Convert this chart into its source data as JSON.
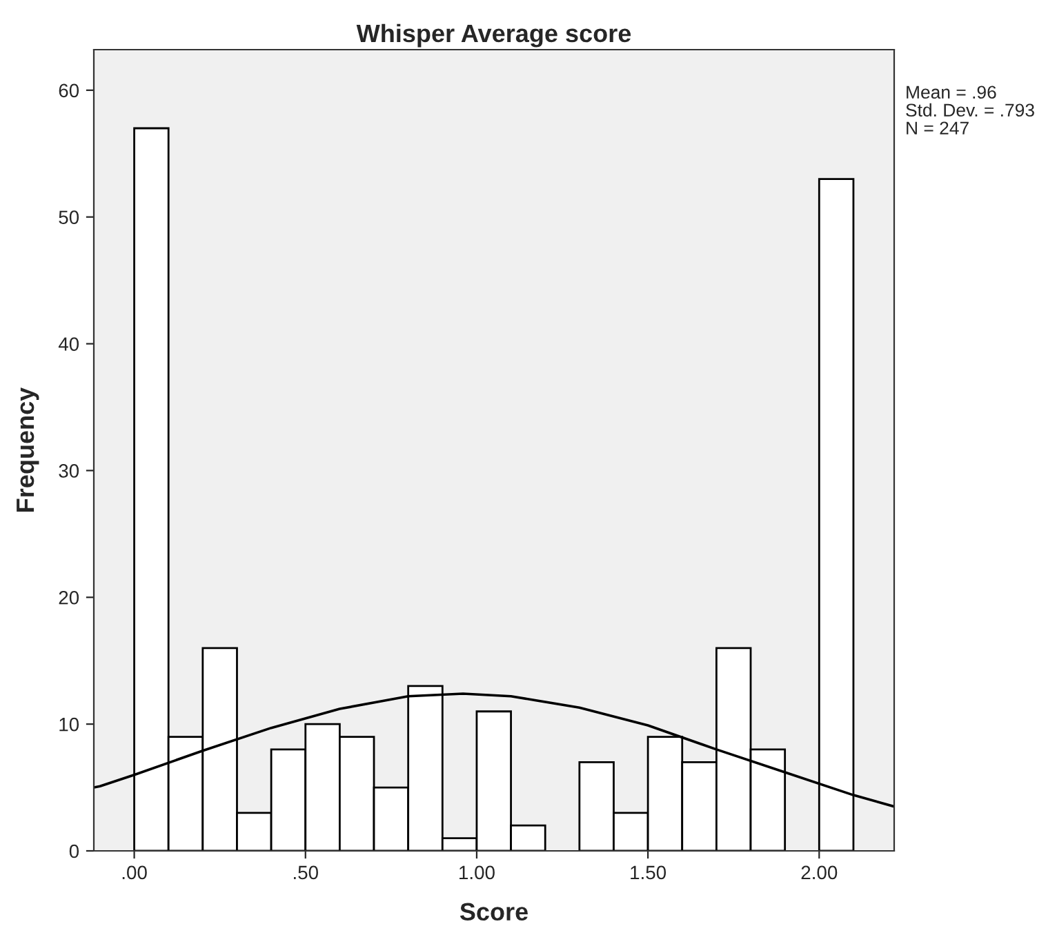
{
  "chart_data": {
    "type": "histogram",
    "title": "Whisper Average score",
    "xlabel": "Score",
    "ylabel": "Frequency",
    "bins": [
      0,
      0.1,
      0.2,
      0.3,
      0.4,
      0.5,
      0.6,
      0.7,
      0.8,
      0.9,
      1.0,
      1.1,
      1.2,
      1.3,
      1.4,
      1.5,
      1.6,
      1.7,
      1.8,
      1.9,
      2.0,
      2.1
    ],
    "values": [
      57,
      9,
      16,
      3,
      8,
      10,
      9,
      5,
      13,
      1,
      11,
      2,
      0,
      7,
      3,
      9,
      7,
      16,
      8,
      0,
      53
    ],
    "color": "#ffffff",
    "series": [
      {
        "type": "line",
        "color": "#000000",
        "x": [
          -0.118,
          -0.1,
          0,
          0.2,
          0.4,
          0.6,
          0.8,
          0.96,
          1.1,
          1.3,
          1.5,
          1.7,
          1.9,
          2.1,
          2.219
        ],
        "values": [
          5.0,
          5.1,
          6.0,
          7.9,
          9.7,
          11.2,
          12.2,
          12.4,
          12.2,
          11.3,
          9.9,
          8.0,
          6.2,
          4.4,
          3.5
        ]
      }
    ],
    "xlim": [
      -0.118,
      2.219
    ],
    "ylim": [
      0,
      63.2
    ],
    "xticks": [
      {
        "value": 0,
        "label": ".00"
      },
      {
        "value": 0.5,
        "label": ".50"
      },
      {
        "value": 1.0,
        "label": "1.00"
      },
      {
        "value": 1.5,
        "label": "1.50"
      },
      {
        "value": 2.0,
        "label": "2.00"
      }
    ],
    "yticks": [
      0,
      10,
      20,
      30,
      40,
      50,
      60
    ],
    "grid": false,
    "annotations": [
      "Mean = .96",
      "Std. Dev. = .793",
      "N = 247"
    ]
  }
}
